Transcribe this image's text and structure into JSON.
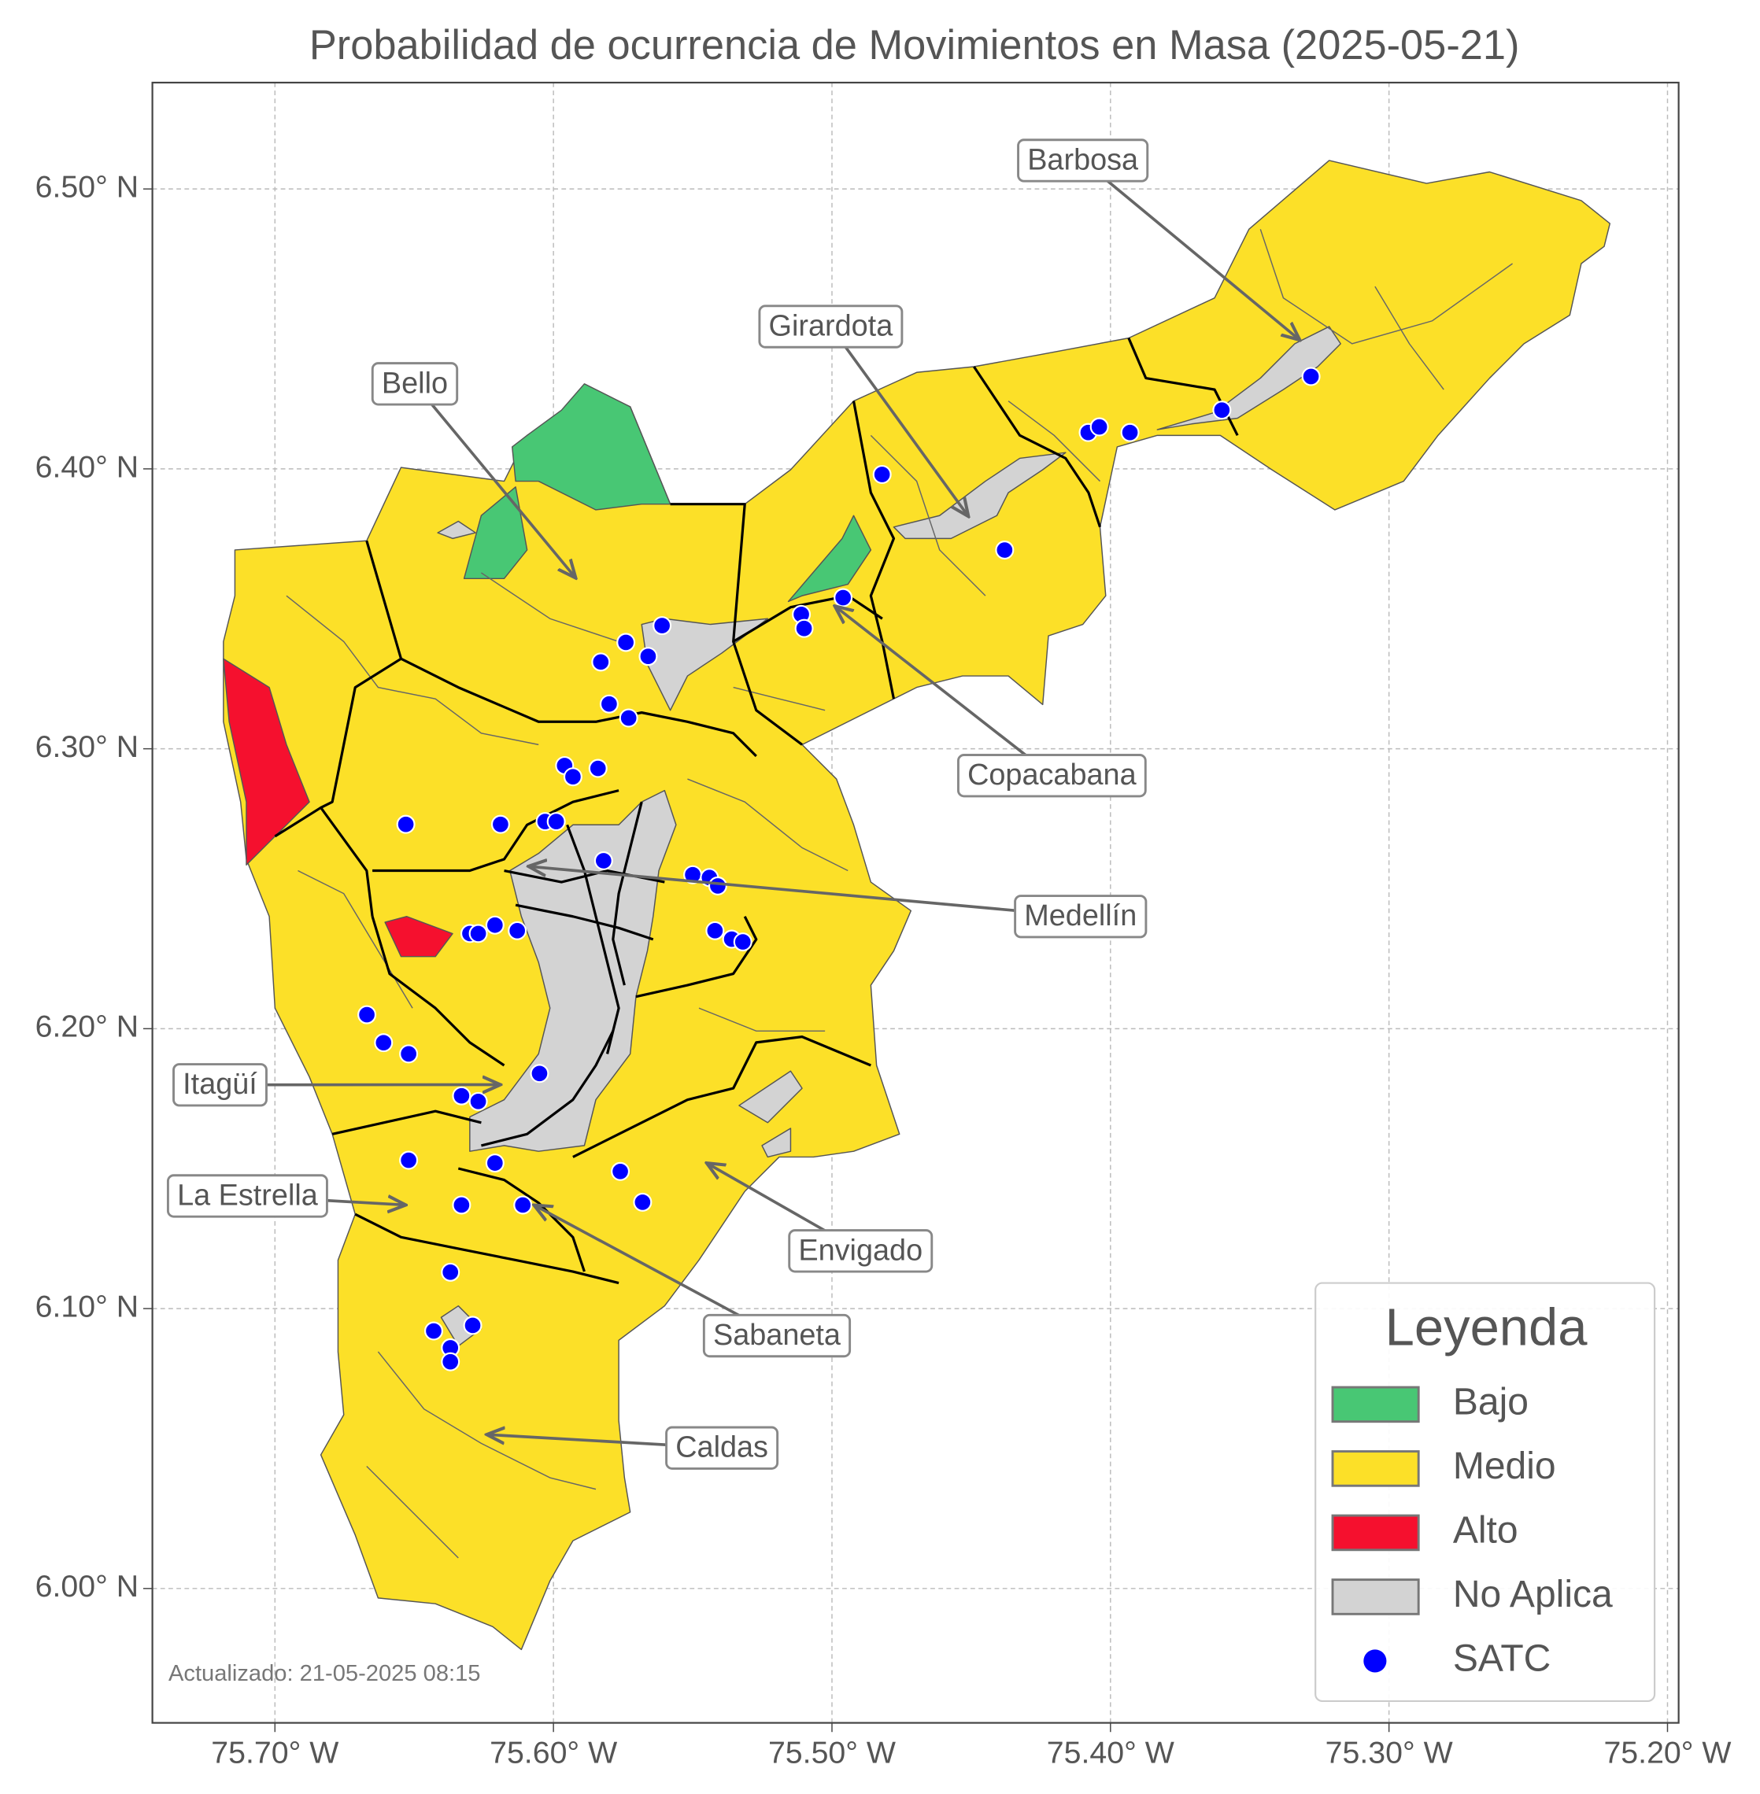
{
  "chart_data": {
    "type": "scatter",
    "title": "Probabilidad de ocurrencia de Movimientos en Masa (2025-05-21)",
    "xlim": [
      -75.744,
      -75.196
    ],
    "ylim": [
      5.952,
      6.538
    ],
    "xticks": [
      {
        "value": -75.7,
        "label": "75.70° W"
      },
      {
        "value": -75.6,
        "label": "75.60° W"
      },
      {
        "value": -75.5,
        "label": "75.50° W"
      },
      {
        "value": -75.4,
        "label": "75.40° W"
      },
      {
        "value": -75.3,
        "label": "75.30° W"
      },
      {
        "value": -75.2,
        "label": "75.20° W"
      }
    ],
    "yticks": [
      {
        "value": 6.0,
        "label": "6.00° N"
      },
      {
        "value": 6.1,
        "label": "6.10° N"
      },
      {
        "value": 6.2,
        "label": "6.20° N"
      },
      {
        "value": 6.3,
        "label": "6.30° N"
      },
      {
        "value": 6.4,
        "label": "6.40° N"
      },
      {
        "value": 6.5,
        "label": "6.50° N"
      }
    ],
    "grid": true,
    "areas": [
      {
        "name": "Bajo",
        "color": "#48c774"
      },
      {
        "name": "Medio",
        "color": "#fce028"
      },
      {
        "name": "Alto",
        "color": "#f5102e"
      },
      {
        "name": "No Aplica",
        "color": "#d3d3d3"
      }
    ],
    "series": [
      {
        "name": "SATC",
        "color": "#0000ff",
        "x": [
          -75.482,
          -75.408,
          -75.404,
          -75.393,
          -75.36,
          -75.328,
          -75.438,
          -75.496,
          -75.511,
          -75.51,
          -75.561,
          -75.574,
          -75.566,
          -75.583,
          -75.58,
          -75.573,
          -75.596,
          -75.593,
          -75.584,
          -75.653,
          -75.619,
          -75.603,
          -75.599,
          -75.582,
          -75.55,
          -75.544,
          -75.541,
          -75.542,
          -75.536,
          -75.532,
          -75.63,
          -75.627,
          -75.621,
          -75.613,
          -75.667,
          -75.661,
          -75.652,
          -75.605,
          -75.633,
          -75.627,
          -75.621,
          -75.652,
          -75.576,
          -75.568,
          -75.633,
          -75.611,
          -75.637,
          -75.643,
          -75.629,
          -75.637,
          -75.637
        ],
        "y": [
          6.398,
          6.413,
          6.415,
          6.413,
          6.421,
          6.433,
          6.371,
          6.354,
          6.348,
          6.343,
          6.344,
          6.338,
          6.333,
          6.331,
          6.316,
          6.311,
          6.294,
          6.29,
          6.293,
          6.273,
          6.273,
          6.274,
          6.274,
          6.26,
          6.255,
          6.254,
          6.251,
          6.235,
          6.232,
          6.231,
          6.234,
          6.234,
          6.237,
          6.235,
          6.205,
          6.195,
          6.191,
          6.184,
          6.176,
          6.174,
          6.152,
          6.153,
          6.149,
          6.138,
          6.137,
          6.137,
          6.113,
          6.092,
          6.094,
          6.086,
          6.081
        ]
      }
    ],
    "annotations": [
      {
        "text": "Barbosa",
        "lon": -75.332,
        "lat": 6.446
      },
      {
        "text": "Girardota",
        "lon": -75.451,
        "lat": 6.383
      },
      {
        "text": "Bello",
        "lon": -75.592,
        "lat": 6.361
      },
      {
        "text": "Copacabana",
        "lon": -75.499,
        "lat": 6.351
      },
      {
        "text": "Medellín",
        "lon": -75.609,
        "lat": 6.258
      },
      {
        "text": "Itagüí",
        "lon": -75.619,
        "lat": 6.18
      },
      {
        "text": "La Estrella",
        "lon": -75.653,
        "lat": 6.137
      },
      {
        "text": "Envigado",
        "lon": -75.545,
        "lat": 6.152
      },
      {
        "text": "Sabaneta",
        "lon": -75.607,
        "lat": 6.137
      },
      {
        "text": "Caldas",
        "lon": -75.624,
        "lat": 6.055
      }
    ],
    "legend": {
      "title": "Leyenda",
      "loc": "lower right"
    },
    "footnote": "Actualizado: 21-05-2025 08:15"
  }
}
